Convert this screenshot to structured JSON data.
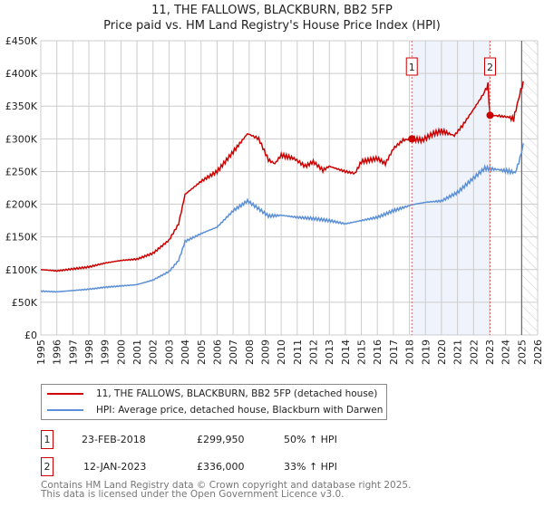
{
  "chart_data": {
    "type": "line",
    "title": "11, THE FALLOWS, BLACKBURN, BB2 5FP",
    "subtitle": "Price paid vs. HM Land Registry's House Price Index (HPI)",
    "xlim": [
      1995,
      2026
    ],
    "ylim": [
      0,
      450000
    ],
    "yticks": [
      {
        "v": 0,
        "label": "£0"
      },
      {
        "v": 50000,
        "label": "£50K"
      },
      {
        "v": 100000,
        "label": "£100K"
      },
      {
        "v": 150000,
        "label": "£150K"
      },
      {
        "v": 200000,
        "label": "£200K"
      },
      {
        "v": 250000,
        "label": "£250K"
      },
      {
        "v": 300000,
        "label": "£300K"
      },
      {
        "v": 350000,
        "label": "£350K"
      },
      {
        "v": 400000,
        "label": "£400K"
      },
      {
        "v": 450000,
        "label": "£450K"
      }
    ],
    "xticks": [
      "1995",
      "1996",
      "1997",
      "1998",
      "1999",
      "2000",
      "2001",
      "2002",
      "2003",
      "2004",
      "2005",
      "2006",
      "2007",
      "2008",
      "2009",
      "2010",
      "2011",
      "2012",
      "2013",
      "2014",
      "2015",
      "2016",
      "2017",
      "2018",
      "2019",
      "2020",
      "2021",
      "2022",
      "2023",
      "2024",
      "2025",
      "2026"
    ],
    "series": [
      {
        "name": "11, THE FALLOWS, BLACKBURN, BB2 5FP (detached house)",
        "color": "#cc0000",
        "points": [
          [
            1995,
            100000
          ],
          [
            1996,
            98000
          ],
          [
            1997,
            101000
          ],
          [
            1998,
            104000
          ],
          [
            1999,
            110000
          ],
          [
            2000,
            114000
          ],
          [
            2001,
            116000
          ],
          [
            2002,
            125000
          ],
          [
            2003,
            145000
          ],
          [
            2003.6,
            170000
          ],
          [
            2004,
            215000
          ],
          [
            2005,
            235000
          ],
          [
            2006,
            250000
          ],
          [
            2007,
            280000
          ],
          [
            2007.9,
            308000
          ],
          [
            2008.6,
            300000
          ],
          [
            2009.2,
            268000
          ],
          [
            2009.6,
            262000
          ],
          [
            2010,
            275000
          ],
          [
            2010.8,
            270000
          ],
          [
            2011.5,
            258000
          ],
          [
            2012,
            265000
          ],
          [
            2012.6,
            252000
          ],
          [
            2013,
            258000
          ],
          [
            2014,
            250000
          ],
          [
            2014.6,
            247000
          ],
          [
            2015,
            265000
          ],
          [
            2016,
            270000
          ],
          [
            2016.5,
            262000
          ],
          [
            2017,
            285000
          ],
          [
            2017.6,
            298000
          ],
          [
            2018.15,
            299950
          ],
          [
            2018.8,
            298000
          ],
          [
            2019.5,
            308000
          ],
          [
            2020,
            312000
          ],
          [
            2020.8,
            305000
          ],
          [
            2021.3,
            320000
          ],
          [
            2022,
            345000
          ],
          [
            2022.6,
            368000
          ],
          [
            2022.9,
            382000
          ],
          [
            2023.03,
            336000
          ],
          [
            2023.6,
            335000
          ],
          [
            2024.2,
            333000
          ],
          [
            2024.5,
            330000
          ],
          [
            2024.8,
            360000
          ],
          [
            2025.1,
            388000
          ]
        ]
      },
      {
        "name": "HPI: Average price, detached house, Blackburn with Darwen",
        "color": "#5b8fd6",
        "points": [
          [
            1995,
            67000
          ],
          [
            1996,
            66000
          ],
          [
            1997,
            68000
          ],
          [
            1998,
            70000
          ],
          [
            1999,
            73000
          ],
          [
            2000,
            75000
          ],
          [
            2001,
            77000
          ],
          [
            2002,
            84000
          ],
          [
            2003,
            97000
          ],
          [
            2003.6,
            114000
          ],
          [
            2004,
            143000
          ],
          [
            2005,
            155000
          ],
          [
            2006,
            165000
          ],
          [
            2007,
            190000
          ],
          [
            2007.9,
            205000
          ],
          [
            2008.6,
            193000
          ],
          [
            2009.2,
            182000
          ],
          [
            2010,
            183000
          ],
          [
            2011,
            180000
          ],
          [
            2012,
            178000
          ],
          [
            2013,
            175000
          ],
          [
            2014,
            170000
          ],
          [
            2015,
            175000
          ],
          [
            2016,
            180000
          ],
          [
            2017,
            190000
          ],
          [
            2018.15,
            199000
          ],
          [
            2019,
            203000
          ],
          [
            2020,
            205000
          ],
          [
            2021,
            218000
          ],
          [
            2022,
            240000
          ],
          [
            2022.7,
            255000
          ],
          [
            2023.5,
            253000
          ],
          [
            2024.3,
            250000
          ],
          [
            2024.6,
            248000
          ],
          [
            2024.9,
            270000
          ],
          [
            2025.1,
            293000
          ]
        ]
      }
    ],
    "sales": [
      {
        "label": "1",
        "x": 2018.15,
        "y": 299950
      },
      {
        "label": "2",
        "x": 2023.03,
        "y": 336000
      }
    ],
    "shaded_range": [
      2018.15,
      2023.03
    ],
    "forecast_from": 2025.0
  },
  "legend": {
    "red": "11, THE FALLOWS, BLACKBURN, BB2 5FP (detached house)",
    "blue": "HPI: Average price, detached house, Blackburn with Darwen"
  },
  "table": [
    {
      "num": "1",
      "date": "23-FEB-2018",
      "price": "£299,950",
      "hpi": "50% ↑ HPI"
    },
    {
      "num": "2",
      "date": "12-JAN-2023",
      "price": "£336,000",
      "hpi": "33% ↑ HPI"
    }
  ],
  "footer": {
    "line1": "Contains HM Land Registry data © Crown copyright and database right 2025.",
    "line2": "This data is licensed under the Open Government Licence v3.0."
  }
}
